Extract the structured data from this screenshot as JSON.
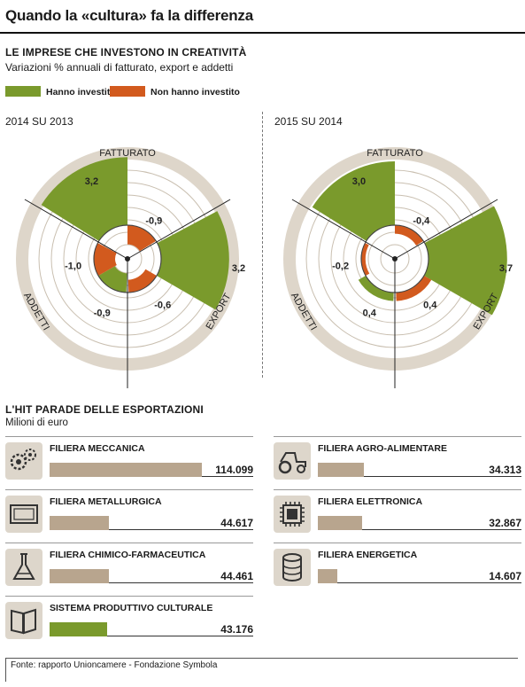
{
  "header": {
    "title": "Quando la «cultura» fa la differenza"
  },
  "section1": {
    "title": "LE IMPRESE CHE INVESTONO IN CREATIVITÀ",
    "subtitle": "Variazioni % annuali di fatturato, export e addetti"
  },
  "legend": [
    {
      "label": "Hanno investito",
      "color": "#7a9a2c"
    },
    {
      "label": "Non hanno investito",
      "color": "#d25a1e"
    }
  ],
  "chart_data": [
    {
      "type": "radial-bar",
      "title": "2014 SU 2013",
      "axes": [
        "FATTURATO",
        "EXPORT",
        "ADDETTI"
      ],
      "series": [
        {
          "name": "Hanno investito",
          "values": [
            3.2,
            3.2,
            -0.9
          ]
        },
        {
          "name": "Non hanno investito",
          "values": [
            -0.9,
            -0.6,
            -1.0
          ]
        }
      ],
      "value_labels": [
        "3,2",
        "-0,9",
        "3,2",
        "-0,6",
        "-0,9",
        "-1,0"
      ]
    },
    {
      "type": "radial-bar",
      "title": "2015 SU 2014",
      "axes": [
        "FATTURATO",
        "EXPORT",
        "ADDETTI"
      ],
      "series": [
        {
          "name": "Hanno investito",
          "values": [
            3.0,
            3.7,
            0.4
          ]
        },
        {
          "name": "Non hanno investito",
          "values": [
            -0.4,
            0.4,
            -0.2
          ]
        }
      ],
      "value_labels": [
        "3,0",
        "-0,4",
        "3,7",
        "0,4",
        "0,4",
        "-0,2"
      ]
    },
    {
      "type": "bar",
      "title": "L'HIT PARADE DELLE ESPORTAZIONI",
      "ylabel": "Milioni di euro",
      "categories": [
        "FILIERA MECCANICA",
        "FILIERA METALLURGICA",
        "FILIERA CHIMICO-FARMACEUTICA",
        "SISTEMA PRODUTTIVO CULTURALE",
        "FILIERA AGRO-ALIMENTARE",
        "FILIERA ELETTRONICA",
        "FILIERA ENERGETICA"
      ],
      "values": [
        114099,
        44617,
        44461,
        43176,
        34313,
        32867,
        14607
      ]
    }
  ],
  "section2": {
    "title": "L'HIT PARADE DELLE ESPORTAZIONI",
    "subtitle": "Milioni di euro",
    "items": [
      {
        "name": "FILIERA MECCANICA",
        "value": 114099,
        "value_label": "114.099",
        "icon": "gears-icon",
        "color": "#b8a58e"
      },
      {
        "name": "FILIERA METALLURGICA",
        "value": 44617,
        "value_label": "44.617",
        "icon": "metal-plate-icon",
        "color": "#b8a58e"
      },
      {
        "name": "FILIERA CHIMICO-FARMACEUTICA",
        "value": 44461,
        "value_label": "44.461",
        "icon": "flask-icon",
        "color": "#b8a58e"
      },
      {
        "name": "SISTEMA PRODUTTIVO CULTURALE",
        "value": 43176,
        "value_label": "43.176",
        "icon": "book-icon",
        "color": "#7a9a2c"
      },
      {
        "name": "FILIERA AGRO-ALIMENTARE",
        "value": 34313,
        "value_label": "34.313",
        "icon": "tractor-icon",
        "color": "#b8a58e"
      },
      {
        "name": "FILIERA ELETTRONICA",
        "value": 32867,
        "value_label": "32.867",
        "icon": "chip-icon",
        "color": "#b8a58e"
      },
      {
        "name": "FILIERA ENERGETICA",
        "value": 14607,
        "value_label": "14.607",
        "icon": "barrel-icon",
        "color": "#b8a58e"
      }
    ]
  },
  "footer": {
    "source": "Fonte: rapporto Unioncamere - Fondazione Symbola"
  }
}
